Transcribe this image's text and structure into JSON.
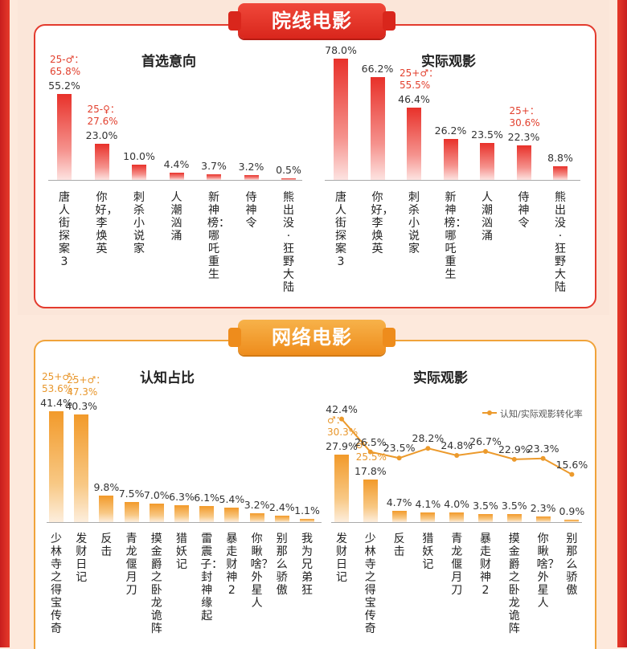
{
  "sections": [
    {
      "title": "院线电影"
    },
    {
      "title": "网络电影"
    }
  ],
  "chart_data": [
    {
      "type": "bar",
      "title": "首选意向",
      "categories": [
        "唐人街探案3",
        "你好，李焕英",
        "刺杀小说家",
        "人潮汹涌",
        "新神榜：哪吒重生",
        "侍神令",
        "熊出没·狂野大陆"
      ],
      "values": [
        55.2,
        23.0,
        10.0,
        4.4,
        3.7,
        3.2,
        0.5
      ],
      "labels": [
        "55.2%",
        "23.0%",
        "10.0%",
        "4.4%",
        "3.7%",
        "3.2%",
        "0.5%"
      ],
      "annotations": [
        {
          "index": 0,
          "text": [
            "25-♂：",
            "65.8%"
          ]
        },
        {
          "index": 1,
          "text": [
            "25-♀：",
            "27.6%"
          ]
        }
      ],
      "ylim": [
        0,
        80
      ],
      "color": "#e8312a"
    },
    {
      "type": "bar",
      "title": "实际观影",
      "categories": [
        "唐人街探案3",
        "你好，李焕英",
        "刺杀小说家",
        "新神榜：哪吒重生",
        "人潮汹涌",
        "侍神令",
        "熊出没·狂野大陆"
      ],
      "values": [
        78.0,
        66.2,
        46.4,
        26.2,
        23.5,
        22.3,
        8.8
      ],
      "labels": [
        "78.0%",
        "66.2%",
        "46.4%",
        "26.2%",
        "23.5%",
        "22.3%",
        "8.8%"
      ],
      "annotations": [
        {
          "index": 2,
          "text": [
            "25+♂：",
            "55.5%"
          ]
        },
        {
          "index": 5,
          "text": [
            "25+：",
            "30.6%"
          ]
        }
      ],
      "ylim": [
        0,
        80
      ],
      "color": "#e8312a"
    },
    {
      "type": "bar",
      "title": "认知占比",
      "categories": [
        "少林寺之得宝传奇",
        "发财日记",
        "反击",
        "青龙偃月刀",
        "摸金爵之卧龙诡阵",
        "猎妖记",
        "雷震子：封神缘起",
        "暴走财神2",
        "你瞅啥？外星人",
        "别那么骄傲",
        "我为兄弟狂"
      ],
      "values": [
        41.4,
        40.3,
        9.8,
        7.5,
        7.0,
        6.3,
        6.1,
        5.4,
        3.2,
        2.4,
        1.1
      ],
      "labels": [
        "41.4%",
        "40.3%",
        "9.8%",
        "7.5%",
        "7.0%",
        "6.3%",
        "6.1%",
        "5.4%",
        "3.2%",
        "2.4%",
        "1.1%"
      ],
      "annotations": [
        {
          "index": 0,
          "text": [
            "25+♂：",
            "53.6%"
          ]
        },
        {
          "index": 1,
          "text": [
            "25+♂：",
            "47.3%"
          ]
        }
      ],
      "ylim": [
        0,
        60
      ],
      "color": "#f29a2a"
    },
    {
      "type": "bar+line",
      "title": "实际观影",
      "categories": [
        "发财日记",
        "少林寺之得宝传奇",
        "反击",
        "猎妖记",
        "青龙偃月刀",
        "暴走财神2",
        "摸金爵之卧龙诡阵",
        "你瞅啥？外星人",
        "别那么骄傲"
      ],
      "values": [
        27.9,
        17.8,
        4.7,
        4.1,
        4.0,
        3.5,
        3.5,
        2.3,
        0.9
      ],
      "labels": [
        "27.9%",
        "17.8%",
        "4.7%",
        "4.1%",
        "4.0%",
        "3.5%",
        "3.5%",
        "2.3%",
        "0.9%"
      ],
      "annotations": [
        {
          "index": 0,
          "text": [
            "♂：",
            "30.3%"
          ]
        },
        {
          "index": 1,
          "text": [
            "♂：",
            "25.5%"
          ]
        }
      ],
      "line": {
        "name": "认知/实际观影转化率",
        "values": [
          42.4,
          26.5,
          23.5,
          28.2,
          24.8,
          26.7,
          22.9,
          23.3,
          15.6
        ],
        "labels": [
          "42.4%",
          "26.5%",
          "23.5%",
          "28.2%",
          "24.8%",
          "26.7%",
          "22.9%",
          "23.3%",
          "15.6%"
        ]
      },
      "ylim": [
        0,
        40
      ],
      "color": "#f29a2a"
    }
  ]
}
